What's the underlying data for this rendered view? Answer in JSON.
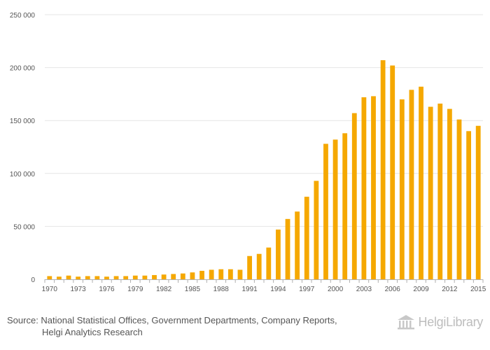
{
  "chart_data": {
    "type": "bar",
    "title": "",
    "xlabel": "",
    "ylabel": "",
    "ylim": [
      0,
      250000
    ],
    "yticks": [
      "0",
      "50 000",
      "100 000",
      "150 000",
      "200 000",
      "250 000"
    ],
    "grid": true,
    "bar_color": "#F5A800",
    "categories": [
      "1970",
      "1971",
      "1972",
      "1973",
      "1974",
      "1975",
      "1976",
      "1977",
      "1978",
      "1979",
      "1980",
      "1981",
      "1982",
      "1983",
      "1984",
      "1985",
      "1986",
      "1987",
      "1988",
      "1989",
      "1990",
      "1991",
      "1992",
      "1993",
      "1994",
      "1995",
      "1996",
      "1997",
      "1998",
      "1999",
      "2000",
      "2001",
      "2002",
      "2003",
      "2004",
      "2005",
      "2006",
      "2007",
      "2008",
      "2009",
      "2010",
      "2011",
      "2012",
      "2013",
      "2014",
      "2015"
    ],
    "xtick_labels": [
      "1970",
      "1973",
      "1976",
      "1979",
      "1982",
      "1985",
      "1988",
      "1991",
      "1994",
      "1997",
      "2000",
      "2003",
      "2006",
      "2009",
      "2012",
      "2015"
    ],
    "values": [
      3000,
      2500,
      3500,
      2500,
      3000,
      3000,
      2500,
      3000,
      3000,
      3500,
      3500,
      4000,
      4500,
      5000,
      5500,
      6500,
      8000,
      9000,
      9500,
      9500,
      9000,
      22000,
      24000,
      30000,
      47000,
      57000,
      64000,
      78000,
      93000,
      128000,
      132000,
      138000,
      157000,
      172000,
      173000,
      207000,
      202000,
      170000,
      179000,
      182000,
      163000,
      166000,
      161000,
      151000,
      140000,
      145000
    ]
  },
  "footer": {
    "source_line1": "Source: National Statistical Offices, Government Departments, Company Reports,",
    "source_line2": "Helgi Analytics Research"
  },
  "brand": {
    "name": "HelgiLibrary",
    "icon": "library-building-icon"
  }
}
